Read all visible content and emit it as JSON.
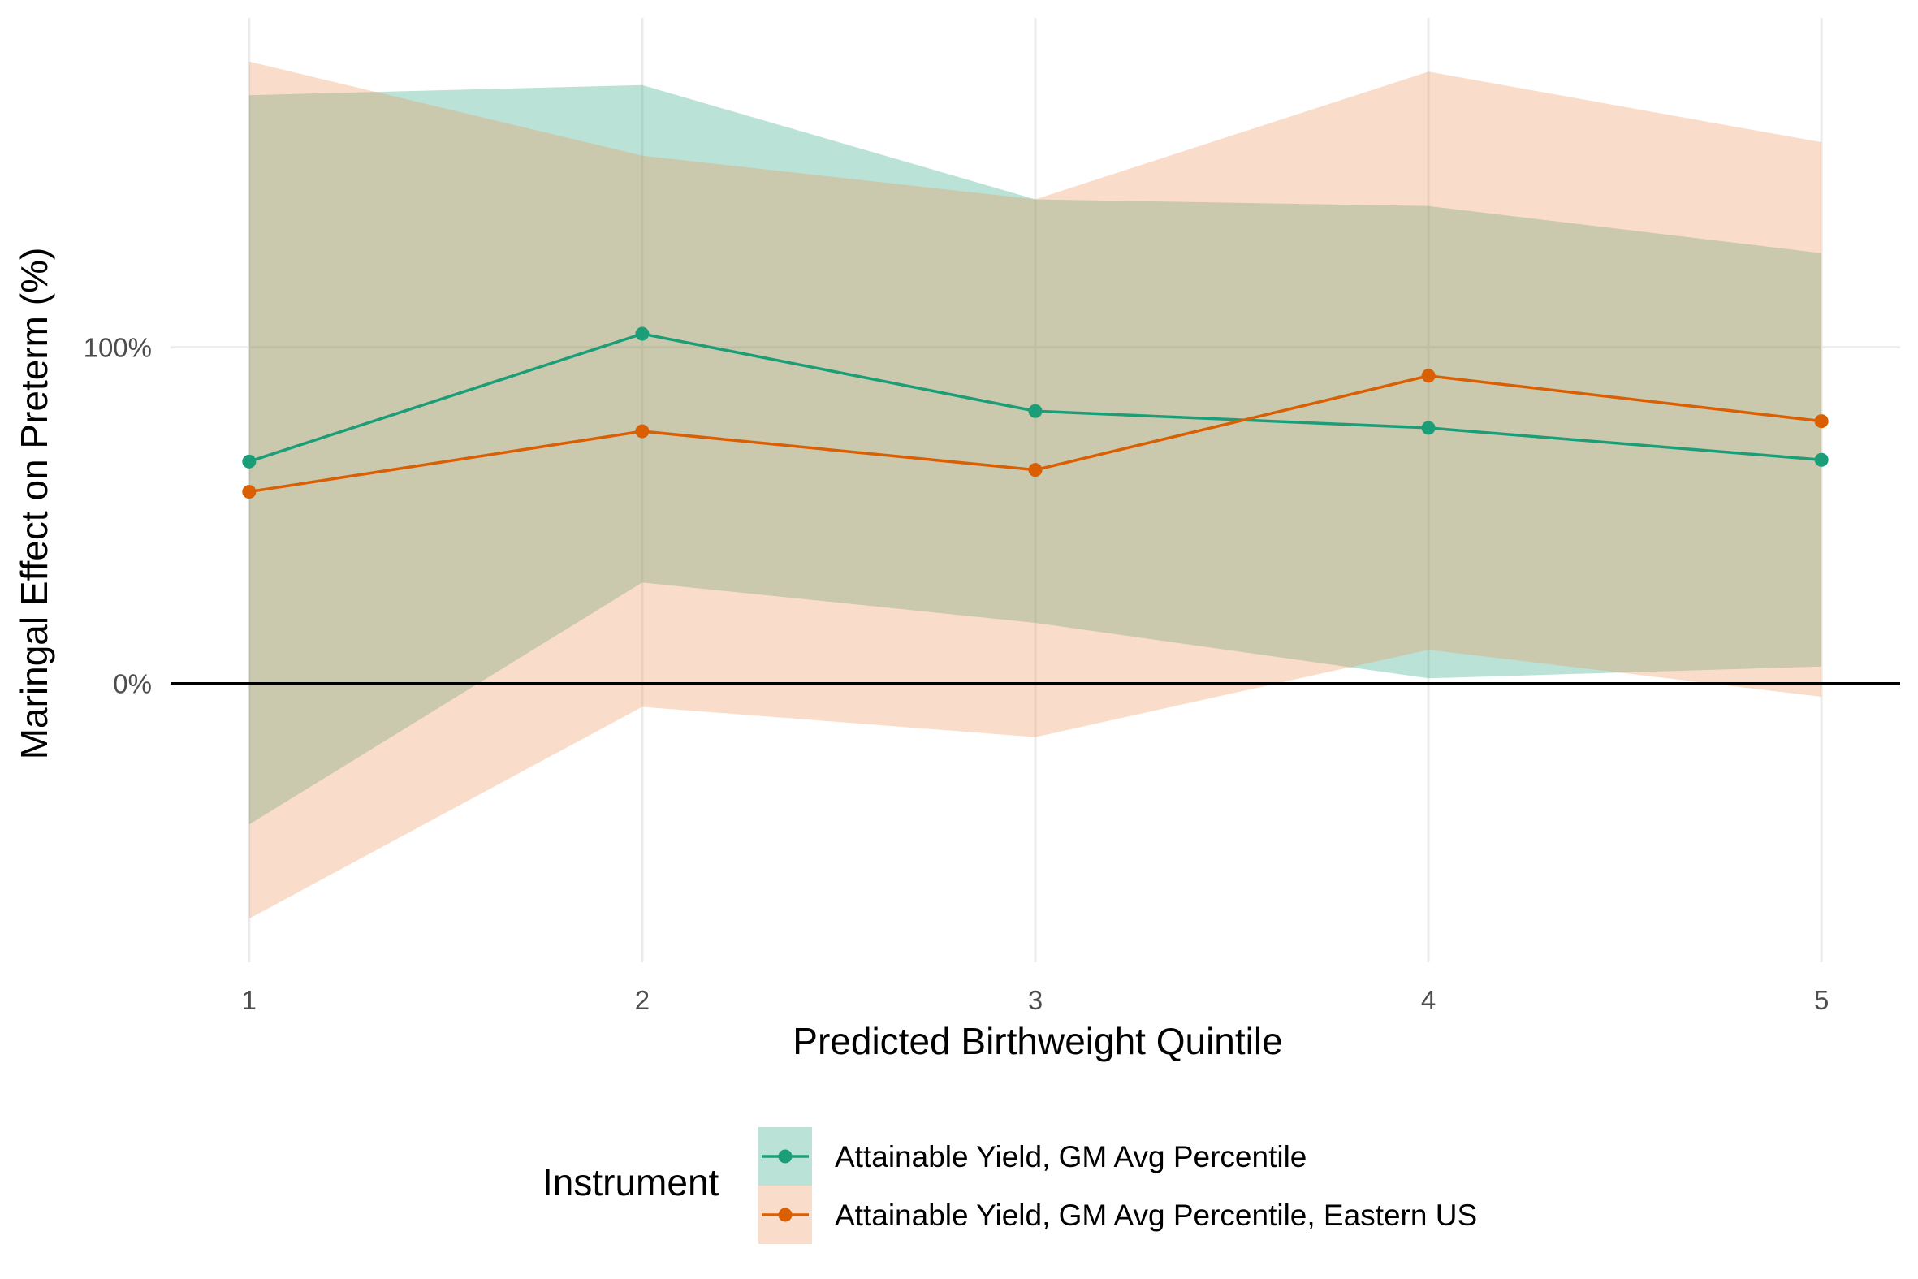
{
  "chart_data": {
    "type": "line",
    "title": "",
    "xlabel": "Predicted Birthweight Quintile",
    "ylabel": "Maringal Effect on Preterm (%)",
    "x": [
      1,
      2,
      3,
      4,
      5
    ],
    "x_tick_labels": [
      "1",
      "2",
      "3",
      "4",
      "5"
    ],
    "y_tick_labels": [
      "0%",
      "100%"
    ],
    "y_ticks": [
      0,
      100
    ],
    "xlim": [
      0.8,
      5.2
    ],
    "ylim": [
      -83,
      198
    ],
    "grid": true,
    "zero_line": true,
    "legend_title": "Instrument",
    "legend_position": "bottom",
    "series": [
      {
        "name": "Attainable Yield, GM Avg Percentile",
        "color": "#1B9E77",
        "fill": "#1B9E77",
        "values": [
          66,
          104,
          81,
          76,
          66.5
        ],
        "lower": [
          -42,
          30,
          18,
          1.5,
          5
        ],
        "upper": [
          175,
          178,
          144,
          142,
          128
        ]
      },
      {
        "name": "Attainable Yield, GM Avg Percentile, Eastern US",
        "color": "#D95F02",
        "fill": "#EE8B4E",
        "values": [
          57,
          75,
          63.5,
          91.5,
          78
        ],
        "lower": [
          -70,
          -7,
          -16,
          10,
          -4
        ],
        "upper": [
          185,
          157,
          144,
          182,
          161
        ]
      }
    ]
  }
}
